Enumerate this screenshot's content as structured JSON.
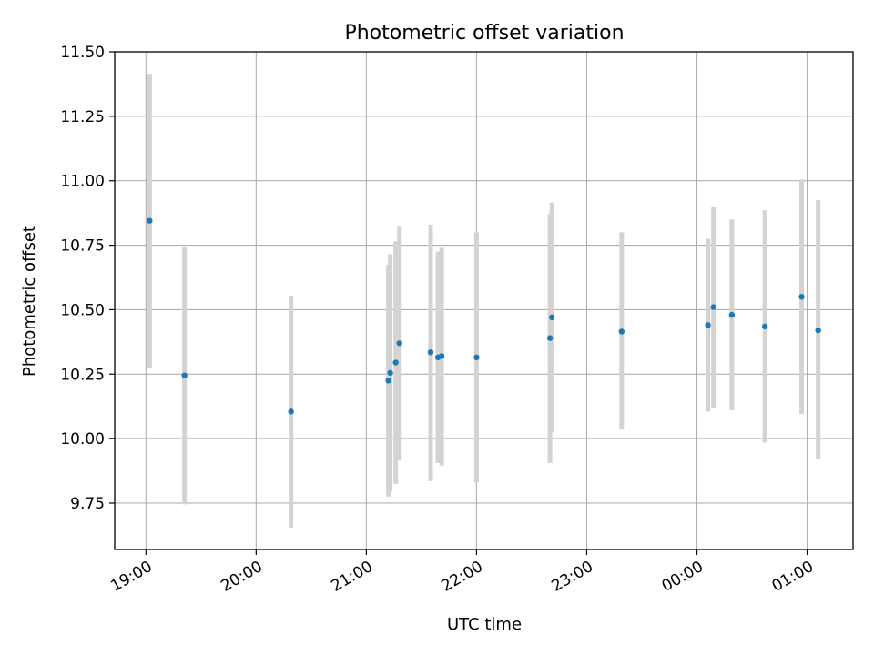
{
  "chart_data": {
    "type": "scatter",
    "title": "Photometric offset variation",
    "xlabel": "UTC time",
    "ylabel": "Photometric offset",
    "xlim": [
      "18:43",
      "01:25"
    ],
    "ylim": [
      9.57,
      11.5
    ],
    "yticks": [
      9.75,
      10.0,
      10.25,
      10.5,
      10.75,
      11.0,
      11.25,
      11.5
    ],
    "ytick_labels": [
      "9.75",
      "10.00",
      "10.25",
      "10.50",
      "10.75",
      "11.00",
      "11.25",
      "11.50"
    ],
    "xticks": [
      "19:00",
      "20:00",
      "21:00",
      "22:00",
      "23:00",
      "00:00",
      "01:00"
    ],
    "grid": true,
    "point_color": "#1f77b4",
    "errorbar_color": "#d3d3d3",
    "points": [
      {
        "x": "19:02",
        "y": 10.845,
        "yerr_low": 10.275,
        "yerr_high": 11.415
      },
      {
        "x": "19:21",
        "y": 10.245,
        "yerr_low": 9.745,
        "yerr_high": 10.745
      },
      {
        "x": "20:19",
        "y": 10.105,
        "yerr_low": 9.655,
        "yerr_high": 10.555
      },
      {
        "x": "21:12",
        "y": 10.225,
        "yerr_low": 9.775,
        "yerr_high": 10.675
      },
      {
        "x": "21:13",
        "y": 10.255,
        "yerr_low": 9.795,
        "yerr_high": 10.715
      },
      {
        "x": "21:16",
        "y": 10.295,
        "yerr_low": 9.825,
        "yerr_high": 10.765
      },
      {
        "x": "21:18",
        "y": 10.37,
        "yerr_low": 9.915,
        "yerr_high": 10.825
      },
      {
        "x": "21:35",
        "y": 10.335,
        "yerr_low": 9.835,
        "yerr_high": 10.83
      },
      {
        "x": "21:39",
        "y": 10.315,
        "yerr_low": 9.905,
        "yerr_high": 10.725
      },
      {
        "x": "21:41",
        "y": 10.32,
        "yerr_low": 9.895,
        "yerr_high": 10.74
      },
      {
        "x": "22:00",
        "y": 10.315,
        "yerr_low": 9.83,
        "yerr_high": 10.8
      },
      {
        "x": "22:40",
        "y": 10.39,
        "yerr_low": 9.905,
        "yerr_high": 10.87
      },
      {
        "x": "22:41",
        "y": 10.47,
        "yerr_low": 10.025,
        "yerr_high": 10.915
      },
      {
        "x": "23:19",
        "y": 10.415,
        "yerr_low": 10.035,
        "yerr_high": 10.8
      },
      {
        "x": "00:06",
        "y": 10.44,
        "yerr_low": 10.105,
        "yerr_high": 10.775
      },
      {
        "x": "00:09",
        "y": 10.51,
        "yerr_low": 10.12,
        "yerr_high": 10.9
      },
      {
        "x": "00:19",
        "y": 10.48,
        "yerr_low": 10.11,
        "yerr_high": 10.85
      },
      {
        "x": "00:37",
        "y": 10.435,
        "yerr_low": 9.985,
        "yerr_high": 10.885
      },
      {
        "x": "00:57",
        "y": 10.55,
        "yerr_low": 10.095,
        "yerr_high": 11.005
      },
      {
        "x": "01:06",
        "y": 10.42,
        "yerr_low": 9.92,
        "yerr_high": 10.925
      }
    ]
  }
}
